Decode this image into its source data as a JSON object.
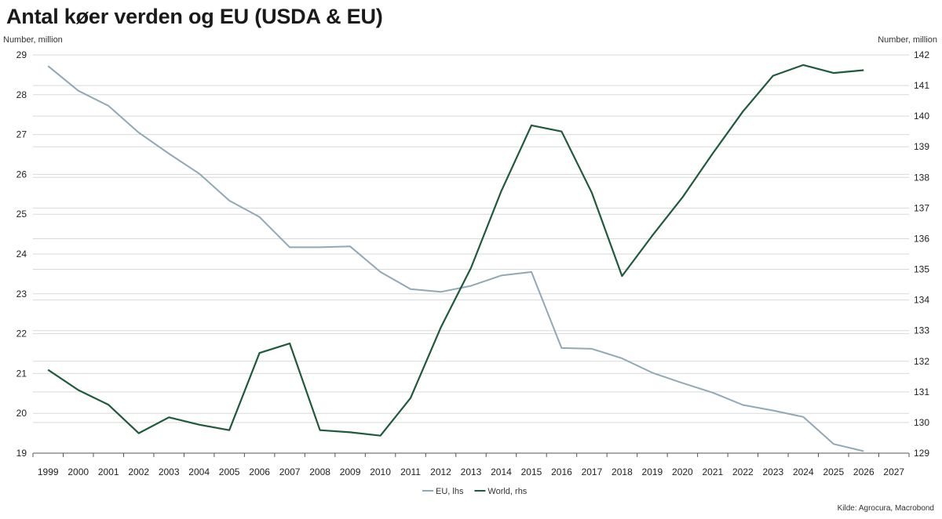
{
  "chart_data": {
    "type": "line",
    "title": "Antal køer verden og EU (USDA & EU)",
    "ylabel_left": "Number, million",
    "ylabel_right": "Number, million",
    "source": "Kilde: Agrocura, Macrobond",
    "categories": [
      "1999",
      "2000",
      "2001",
      "2002",
      "2003",
      "2004",
      "2005",
      "2006",
      "2007",
      "2008",
      "2009",
      "2010",
      "2011",
      "2012",
      "2013",
      "2014",
      "2015",
      "2016",
      "2017",
      "2018",
      "2019",
      "2020",
      "2021",
      "2022",
      "2023",
      "2024",
      "2025",
      "2026",
      "2027"
    ],
    "ylim_left": [
      19,
      29
    ],
    "ylim_right": [
      129,
      142
    ],
    "yticks_left": [
      19,
      20,
      21,
      22,
      23,
      24,
      25,
      26,
      27,
      28,
      29
    ],
    "yticks_right": [
      129,
      130,
      131,
      132,
      133,
      134,
      135,
      136,
      137,
      138,
      139,
      140,
      141,
      142
    ],
    "series": [
      {
        "name": "EU, lhs",
        "axis": "left",
        "color": "#8fa9b5",
        "values": [
          28.72,
          28.1,
          27.72,
          27.05,
          26.52,
          26.02,
          25.34,
          24.93,
          24.17,
          24.17,
          24.19,
          23.55,
          23.12,
          23.05,
          23.2,
          23.46,
          23.55,
          21.64,
          21.62,
          21.38,
          21.02,
          20.76,
          20.52,
          20.21,
          20.07,
          19.91,
          19.23,
          19.05,
          null
        ]
      },
      {
        "name": "World, rhs",
        "axis": "right",
        "color": "#1e5a3c",
        "values": [
          131.72,
          131.06,
          130.58,
          129.65,
          130.17,
          129.93,
          129.75,
          132.27,
          132.58,
          129.75,
          129.68,
          129.57,
          130.8,
          133.1,
          135.05,
          137.55,
          139.7,
          139.5,
          137.5,
          134.78,
          136.1,
          137.35,
          138.78,
          140.15,
          141.32,
          141.67,
          141.41,
          141.5,
          null
        ]
      }
    ],
    "legend": [
      "EU, lhs",
      "World, rhs"
    ],
    "legend_position": "bottom-center"
  }
}
